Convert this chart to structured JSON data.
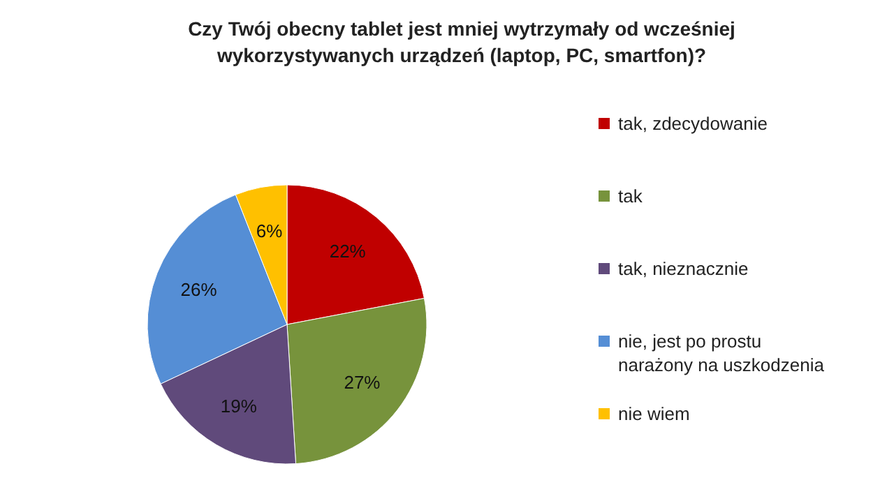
{
  "chart_data": {
    "type": "pie",
    "title": "Czy Twój obecny tablet jest mniej wytrzymały od wcześniej wykorzystywanych urządzeń (laptop, PC, smartfon)?",
    "categories": [
      "tak, zdecydowanie",
      "tak",
      "tak, nieznacznie",
      "nie, jest po prostu narażony na uszkodzenia",
      "nie wiem"
    ],
    "values": [
      22,
      27,
      19,
      26,
      6
    ],
    "value_labels": [
      "22%",
      "27%",
      "19%",
      "26%",
      "6%"
    ],
    "colors": [
      "#c00000",
      "#77933c",
      "#604a7b",
      "#558ed5",
      "#ffc000"
    ],
    "legend": "right"
  }
}
